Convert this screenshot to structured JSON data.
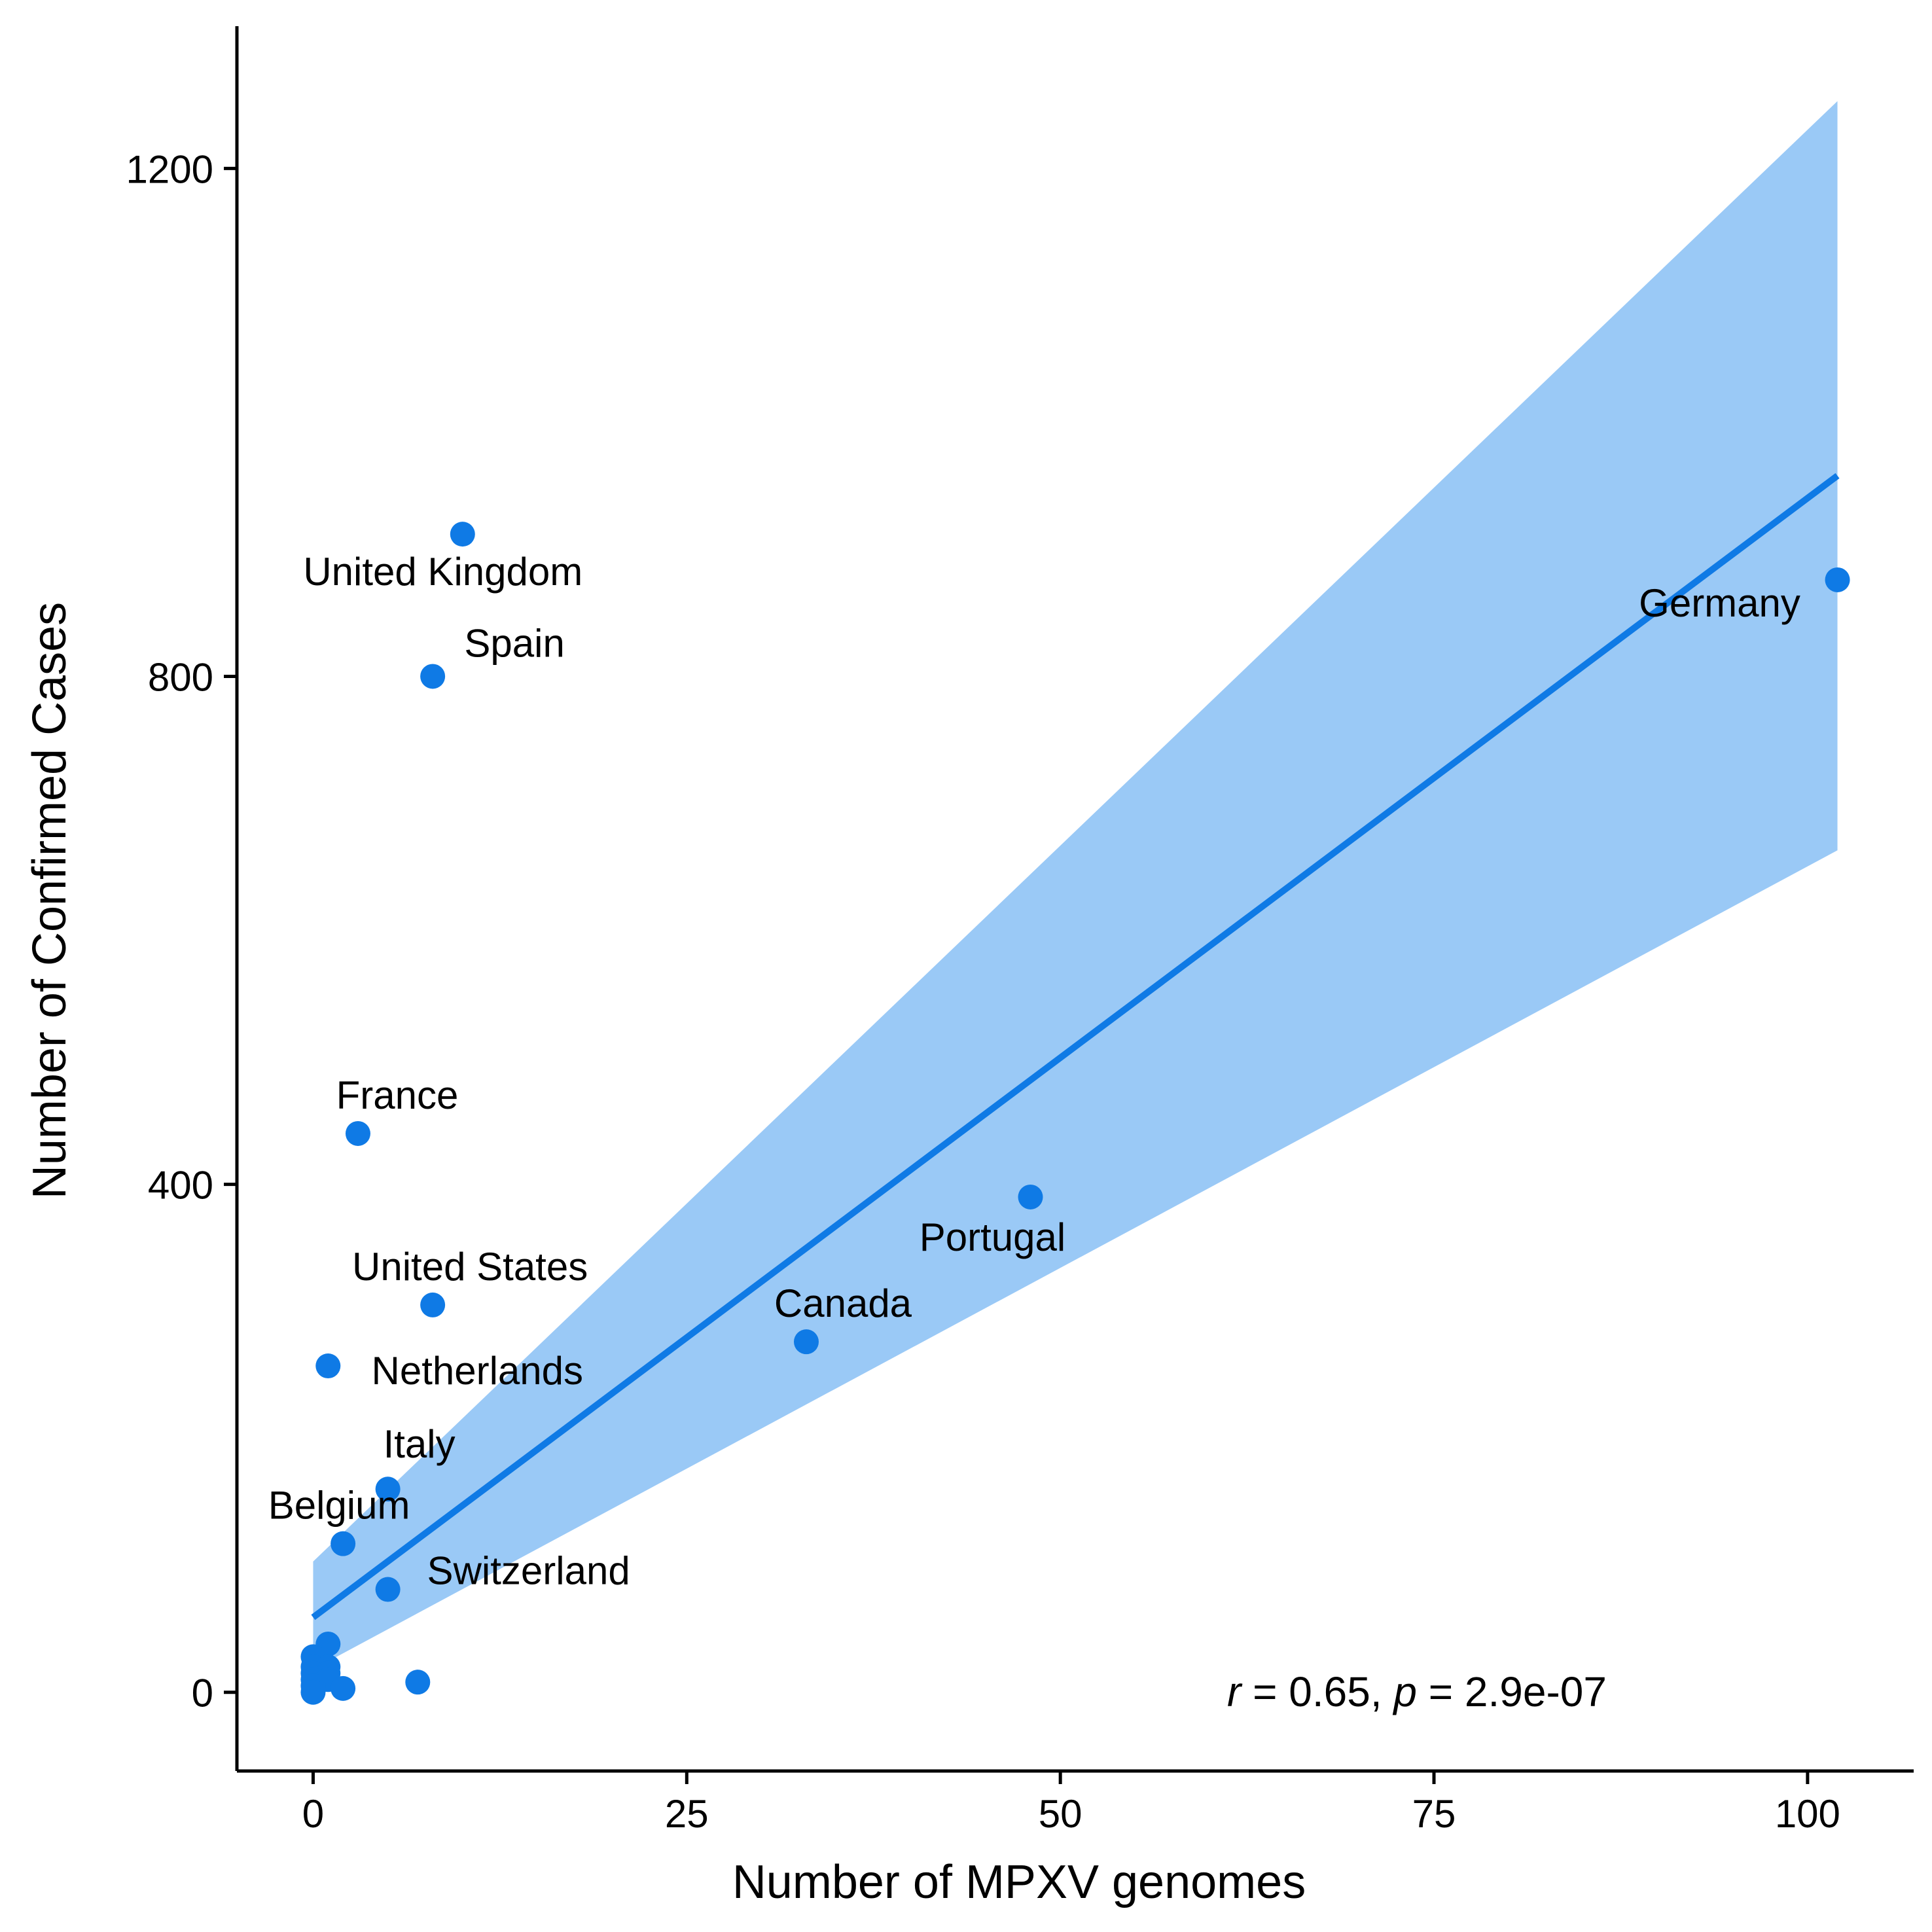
{
  "chart_data": {
    "type": "scatter",
    "xlabel": "Number of MPXV genomes",
    "ylabel": "Number of Confirmed Cases",
    "xlim": [
      -5.1,
      107.1
    ],
    "ylim": [
      -62,
      1312
    ],
    "x_ticks": [
      0,
      25,
      50,
      75,
      100
    ],
    "y_ticks": [
      0,
      400,
      800,
      1200
    ],
    "grid": false,
    "legend": "none",
    "colors": {
      "points": "#0f7ae5",
      "fit_line": "#0f7ae5",
      "confidence_band": "#9ac9f6",
      "axis": "#000000"
    },
    "points": [
      {
        "x": 10,
        "y": 912,
        "label": "United Kingdom"
      },
      {
        "x": 8,
        "y": 800,
        "label": "Spain"
      },
      {
        "x": 102,
        "y": 876,
        "label": "Germany"
      },
      {
        "x": 3,
        "y": 440,
        "label": "France"
      },
      {
        "x": 48,
        "y": 390,
        "label": "Portugal"
      },
      {
        "x": 8,
        "y": 305,
        "label": "United States"
      },
      {
        "x": 33,
        "y": 276,
        "label": "Canada"
      },
      {
        "x": 1,
        "y": 257,
        "label": "Netherlands"
      },
      {
        "x": 5,
        "y": 160,
        "label": "Italy"
      },
      {
        "x": 2,
        "y": 117,
        "label": "Belgium"
      },
      {
        "x": 5,
        "y": 81,
        "label": "Switzerland"
      },
      {
        "x": 1,
        "y": 38,
        "label": ""
      },
      {
        "x": 0,
        "y": 28,
        "label": ""
      },
      {
        "x": 0,
        "y": 20,
        "label": ""
      },
      {
        "x": 1,
        "y": 20,
        "label": ""
      },
      {
        "x": 0,
        "y": 15,
        "label": ""
      },
      {
        "x": 1,
        "y": 15,
        "label": ""
      },
      {
        "x": 0,
        "y": 10,
        "label": ""
      },
      {
        "x": 1,
        "y": 10,
        "label": ""
      },
      {
        "x": 0,
        "y": 5,
        "label": ""
      },
      {
        "x": 2,
        "y": 3,
        "label": ""
      },
      {
        "x": 7,
        "y": 8,
        "label": ""
      },
      {
        "x": 0,
        "y": 0,
        "label": ""
      }
    ],
    "fit_line": {
      "x": [
        0,
        102
      ],
      "y": [
        59,
        958
      ]
    },
    "confidence_band": [
      {
        "x": 0,
        "lower": 18,
        "upper": 103
      },
      {
        "x": 102,
        "lower": 663,
        "upper": 1253
      }
    ],
    "annotation": {
      "r_symbol": "r",
      "r_text": " = 0.65, ",
      "p_symbol": "p",
      "p_text": " = 2.9e-07"
    }
  }
}
